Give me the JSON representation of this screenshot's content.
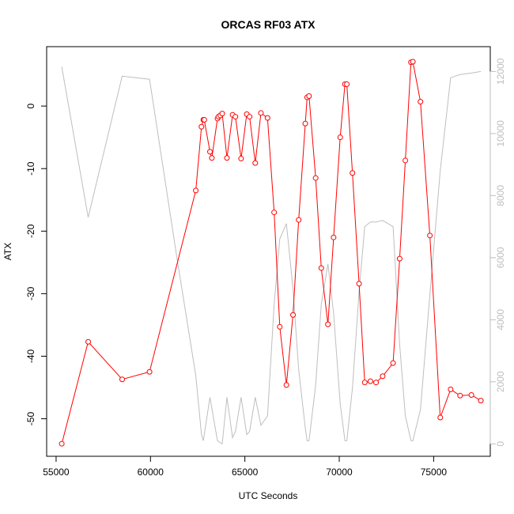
{
  "chart_data": {
    "type": "line",
    "title": "ORCAS RF03 ATX",
    "xlabel": "UTC Seconds",
    "ylabel": "ATX",
    "xlim": [
      54500,
      78000
    ],
    "ylim": [
      -56,
      9.5
    ],
    "y2lim": [
      -400,
      12800
    ],
    "x_ticks": [
      55000,
      60000,
      65000,
      70000,
      75000
    ],
    "y_ticks": [
      -50,
      -40,
      -30,
      -20,
      -10,
      0
    ],
    "y2_ticks": [
      0,
      2000,
      4000,
      6000,
      8000,
      10000,
      12000
    ],
    "grid": false,
    "series": [
      {
        "color": "#ff0000",
        "style": "line-points",
        "axis": "left",
        "x": [
          55300,
          56700,
          58500,
          59950,
          62400,
          62700,
          62800,
          62850,
          63150,
          63250,
          63550,
          63600,
          63700,
          63800,
          64050,
          64350,
          64500,
          64800,
          65100,
          65250,
          65550,
          65850,
          66200,
          66550,
          66850,
          67200,
          67550,
          67850,
          68200,
          68300,
          68400,
          68750,
          69050,
          69400,
          69700,
          70050,
          70300,
          70400,
          70700,
          71050,
          71350,
          71650,
          71950,
          72300,
          72850,
          73200,
          73500,
          73800,
          73900,
          74300,
          74800,
          75350,
          75900,
          76400,
          77000,
          77500
        ],
        "y": [
          -54,
          -37.7,
          -43.7,
          -42.5,
          -13.5,
          -3.3,
          -2.2,
          -2.2,
          -7.3,
          -8.3,
          -2,
          -1.7,
          -1.5,
          -1.2,
          -8.3,
          -1.4,
          -1.7,
          -8.4,
          -1.3,
          -1.7,
          -9.1,
          -1.1,
          -1.9,
          -17,
          -35.3,
          -44.6,
          -33.4,
          -18.2,
          -2.8,
          1.4,
          1.6,
          -11.5,
          -25.9,
          -34.9,
          -21,
          -5,
          3.5,
          3.5,
          -10.7,
          -28.4,
          -44.2,
          -44,
          -44.2,
          -43.2,
          -41.1,
          -24.4,
          -8.7,
          7,
          7.1,
          0.7,
          -20.7,
          -49.8,
          -45.3,
          -46.3,
          -46.2,
          -47.1
        ]
      },
      {
        "color": "#bebebe",
        "style": "line",
        "axis": "right",
        "x": [
          55300,
          56700,
          58500,
          59950,
          61400,
          62400,
          62700,
          62800,
          63150,
          63550,
          63800,
          64050,
          64350,
          64500,
          64800,
          65100,
          65250,
          65550,
          65850,
          66200,
          66550,
          66850,
          67200,
          67550,
          67850,
          68200,
          68300,
          68400,
          68750,
          69050,
          69400,
          69700,
          70050,
          70300,
          70400,
          70700,
          71050,
          71350,
          71650,
          71950,
          72300,
          72850,
          73200,
          73500,
          73800,
          73900,
          74300,
          74800,
          75350,
          75900,
          76400,
          77000,
          77500
        ],
        "y": [
          12150,
          7300,
          11850,
          11750,
          6000,
          2200,
          300,
          100,
          1500,
          100,
          0,
          1500,
          200,
          400,
          1500,
          300,
          400,
          1500,
          600,
          900,
          4500,
          6600,
          7100,
          5000,
          2400,
          500,
          100,
          100,
          1900,
          4500,
          5800,
          4200,
          1300,
          100,
          100,
          1800,
          4900,
          7000,
          7150,
          7150,
          7200,
          7000,
          3200,
          900,
          100,
          100,
          1100,
          4800,
          8800,
          11800,
          11900,
          11950,
          12000
        ]
      }
    ]
  }
}
